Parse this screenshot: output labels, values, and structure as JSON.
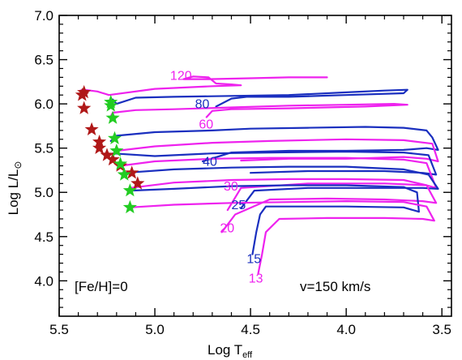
{
  "chart_data": {
    "type": "line",
    "title": "",
    "xlabel": "Log T",
    "xlabel_sub": "eff",
    "ylabel": "Log L/L",
    "ylabel_sub": "⊙",
    "xlim": [
      5.5,
      3.45
    ],
    "ylim": [
      3.6,
      7.0
    ],
    "xticks": [
      "5.5",
      "5.0",
      "4.5",
      "4.0",
      "3.5"
    ],
    "yticks": [
      "4.0",
      "4.5",
      "5.0",
      "5.5",
      "6.0",
      "6.5",
      "7.0"
    ],
    "x_reversed": true,
    "grid": false,
    "annotations": {
      "left": "[Fe/H]=0",
      "right": "v=150 km/s"
    },
    "colors": {
      "blue": "#1a2fbf",
      "magenta": "#ee22ee",
      "red_star": "#b01818",
      "green_star": "#22cc22"
    },
    "series": [
      {
        "label": "120",
        "color": "magenta",
        "points": [
          [
            5.39,
            6.15
          ],
          [
            5.37,
            6.16
          ],
          [
            5.3,
            6.14
          ],
          [
            5.24,
            6.1
          ],
          [
            5.0,
            6.17
          ],
          [
            4.7,
            6.2
          ],
          [
            4.55,
            6.21
          ],
          [
            4.6,
            6.22
          ],
          [
            4.68,
            6.23
          ],
          [
            4.72,
            6.3
          ],
          [
            4.8,
            6.31
          ],
          [
            4.85,
            6.28
          ],
          [
            4.72,
            6.28
          ],
          [
            4.5,
            6.29
          ],
          [
            4.3,
            6.3
          ],
          [
            4.1,
            6.3
          ]
        ]
      },
      {
        "label": "80",
        "color": "blue",
        "points": [
          [
            5.22,
            6.05
          ],
          [
            5.2,
            6.0
          ],
          [
            5.1,
            6.07
          ],
          [
            4.9,
            6.08
          ],
          [
            4.6,
            6.09
          ],
          [
            4.3,
            6.1
          ],
          [
            4.0,
            6.13
          ],
          [
            3.8,
            6.15
          ],
          [
            3.68,
            6.16
          ],
          [
            3.7,
            6.12
          ],
          [
            4.0,
            6.1
          ],
          [
            4.3,
            6.08
          ],
          [
            4.52,
            6.08
          ],
          [
            4.6,
            6.06
          ],
          [
            4.68,
            5.97
          ]
        ]
      },
      {
        "label": "60",
        "color": "magenta",
        "points": [
          [
            5.23,
            5.86
          ],
          [
            5.22,
            5.9
          ],
          [
            5.1,
            5.93
          ],
          [
            4.9,
            5.94
          ],
          [
            4.6,
            5.96
          ],
          [
            4.3,
            5.98
          ],
          [
            4.0,
            5.99
          ],
          [
            3.75,
            6.0
          ],
          [
            3.68,
            5.99
          ],
          [
            3.9,
            5.97
          ],
          [
            4.3,
            5.95
          ],
          [
            4.6,
            5.94
          ],
          [
            4.7,
            5.92
          ],
          [
            4.73,
            5.85
          ]
        ]
      },
      {
        "label": "40",
        "color": "blue",
        "points": [
          [
            5.23,
            5.58
          ],
          [
            5.2,
            5.64
          ],
          [
            5.0,
            5.68
          ],
          [
            4.7,
            5.7
          ],
          [
            4.5,
            5.72
          ],
          [
            4.2,
            5.73
          ],
          [
            3.9,
            5.74
          ],
          [
            3.7,
            5.73
          ],
          [
            3.58,
            5.7
          ],
          [
            3.55,
            5.62
          ],
          [
            3.52,
            5.48
          ],
          [
            3.58,
            5.5
          ],
          [
            3.7,
            5.48
          ],
          [
            4.0,
            5.47
          ],
          [
            4.3,
            5.47
          ],
          [
            4.6,
            5.45
          ],
          [
            4.75,
            5.35
          ]
        ]
      },
      {
        "label": "",
        "color": "magenta",
        "points": [
          [
            5.2,
            5.47
          ],
          [
            5.0,
            5.52
          ],
          [
            4.7,
            5.56
          ],
          [
            4.4,
            5.58
          ],
          [
            4.0,
            5.6
          ],
          [
            3.7,
            5.59
          ],
          [
            3.55,
            5.55
          ],
          [
            3.52,
            5.35
          ],
          [
            3.58,
            5.38
          ],
          [
            3.7,
            5.4
          ],
          [
            4.0,
            5.38
          ],
          [
            4.3,
            5.38
          ],
          [
            4.55,
            5.36
          ]
        ]
      },
      {
        "label": "",
        "color": "blue",
        "points": [
          [
            5.22,
            5.44
          ],
          [
            5.0,
            5.41
          ],
          [
            4.7,
            5.44
          ],
          [
            4.4,
            5.45
          ],
          [
            4.0,
            5.46
          ],
          [
            3.7,
            5.45
          ],
          [
            3.57,
            5.42
          ],
          [
            3.53,
            5.2
          ],
          [
            3.6,
            5.22
          ],
          [
            3.8,
            5.24
          ],
          [
            4.2,
            5.24
          ],
          [
            4.5,
            5.22
          ]
        ]
      },
      {
        "label": "30",
        "color": "magenta",
        "points": [
          [
            5.18,
            5.3
          ],
          [
            5.0,
            5.35
          ],
          [
            4.7,
            5.38
          ],
          [
            4.4,
            5.39
          ],
          [
            4.0,
            5.39
          ],
          [
            3.7,
            5.37
          ],
          [
            3.58,
            5.33
          ],
          [
            3.53,
            5.05
          ],
          [
            3.58,
            5.08
          ],
          [
            3.8,
            5.1
          ],
          [
            4.2,
            5.1
          ],
          [
            4.55,
            5.05
          ],
          [
            4.62,
            4.8
          ]
        ]
      },
      {
        "label": "25",
        "color": "blue",
        "points": [
          [
            5.16,
            5.22
          ],
          [
            4.9,
            5.26
          ],
          [
            4.6,
            5.28
          ],
          [
            4.3,
            5.29
          ],
          [
            4.0,
            5.29
          ],
          [
            3.7,
            5.26
          ],
          [
            3.57,
            5.2
          ],
          [
            3.52,
            5.04
          ],
          [
            3.6,
            5.05
          ],
          [
            3.8,
            5.05
          ],
          [
            4.2,
            5.05
          ],
          [
            4.48,
            5.02
          ],
          [
            4.55,
            4.82
          ]
        ]
      },
      {
        "label": "20",
        "color": "magenta",
        "points": [
          [
            5.13,
            5.05
          ],
          [
            4.9,
            5.11
          ],
          [
            4.6,
            5.14
          ],
          [
            4.3,
            5.15
          ],
          [
            4.0,
            5.15
          ],
          [
            3.7,
            5.14
          ],
          [
            3.58,
            5.08
          ],
          [
            3.53,
            4.88
          ],
          [
            3.6,
            4.9
          ],
          [
            3.8,
            4.92
          ],
          [
            4.1,
            4.93
          ],
          [
            4.4,
            4.92
          ],
          [
            4.58,
            4.75
          ],
          [
            4.65,
            4.55
          ]
        ]
      },
      {
        "label": "15",
        "color": "blue",
        "points": [
          [
            5.13,
            5.02
          ],
          [
            4.9,
            5.04
          ],
          [
            4.6,
            5.07
          ],
          [
            4.3,
            5.08
          ],
          [
            4.0,
            5.08
          ],
          [
            3.7,
            5.06
          ],
          [
            3.63,
            5.0
          ],
          [
            3.62,
            4.78
          ],
          [
            3.7,
            4.83
          ],
          [
            4.0,
            4.84
          ],
          [
            4.3,
            4.84
          ],
          [
            4.42,
            4.84
          ],
          [
            4.45,
            4.75
          ],
          [
            4.47,
            4.55
          ],
          [
            4.49,
            4.3
          ]
        ]
      },
      {
        "label": "13",
        "color": "magenta",
        "points": [
          [
            5.13,
            4.83
          ],
          [
            4.9,
            4.86
          ],
          [
            4.6,
            4.88
          ],
          [
            4.3,
            4.89
          ],
          [
            4.0,
            4.9
          ],
          [
            3.7,
            4.89
          ],
          [
            3.58,
            4.84
          ],
          [
            3.54,
            4.68
          ],
          [
            3.6,
            4.7
          ],
          [
            3.8,
            4.71
          ],
          [
            4.1,
            4.71
          ],
          [
            4.35,
            4.7
          ],
          [
            4.42,
            4.55
          ],
          [
            4.44,
            4.3
          ],
          [
            4.46,
            4.08
          ]
        ]
      }
    ],
    "track_labels": [
      {
        "text": "120",
        "x": 4.92,
        "y": 6.27,
        "color": "magenta"
      },
      {
        "text": "80",
        "x": 4.79,
        "y": 5.95,
        "color": "blue"
      },
      {
        "text": "60",
        "x": 4.77,
        "y": 5.72,
        "color": "magenta"
      },
      {
        "text": "40",
        "x": 4.75,
        "y": 5.3,
        "color": "blue"
      },
      {
        "text": "30",
        "x": 4.64,
        "y": 5.02,
        "color": "magenta"
      },
      {
        "text": "25",
        "x": 4.6,
        "y": 4.81,
        "color": "blue"
      },
      {
        "text": "20",
        "x": 4.66,
        "y": 4.55,
        "color": "magenta"
      },
      {
        "text": "15",
        "x": 4.52,
        "y": 4.2,
        "color": "blue"
      },
      {
        "text": "13",
        "x": 4.51,
        "y": 3.98,
        "color": "magenta"
      }
    ],
    "red_stars": [
      [
        5.37,
        6.13
      ],
      [
        5.38,
        6.1
      ],
      [
        5.37,
        5.95
      ],
      [
        5.33,
        5.71
      ],
      [
        5.29,
        5.57
      ],
      [
        5.29,
        5.5
      ],
      [
        5.25,
        5.42
      ],
      [
        5.22,
        5.37
      ],
      [
        5.18,
        5.3
      ],
      [
        5.12,
        5.22
      ],
      [
        5.09,
        5.1
      ]
    ],
    "green_stars": [
      [
        5.23,
        6.02
      ],
      [
        5.23,
        5.98
      ],
      [
        5.22,
        5.84
      ],
      [
        5.21,
        5.61
      ],
      [
        5.2,
        5.47
      ],
      [
        5.18,
        5.32
      ],
      [
        5.16,
        5.2
      ],
      [
        5.13,
        5.02
      ],
      [
        5.13,
        4.83
      ]
    ]
  }
}
